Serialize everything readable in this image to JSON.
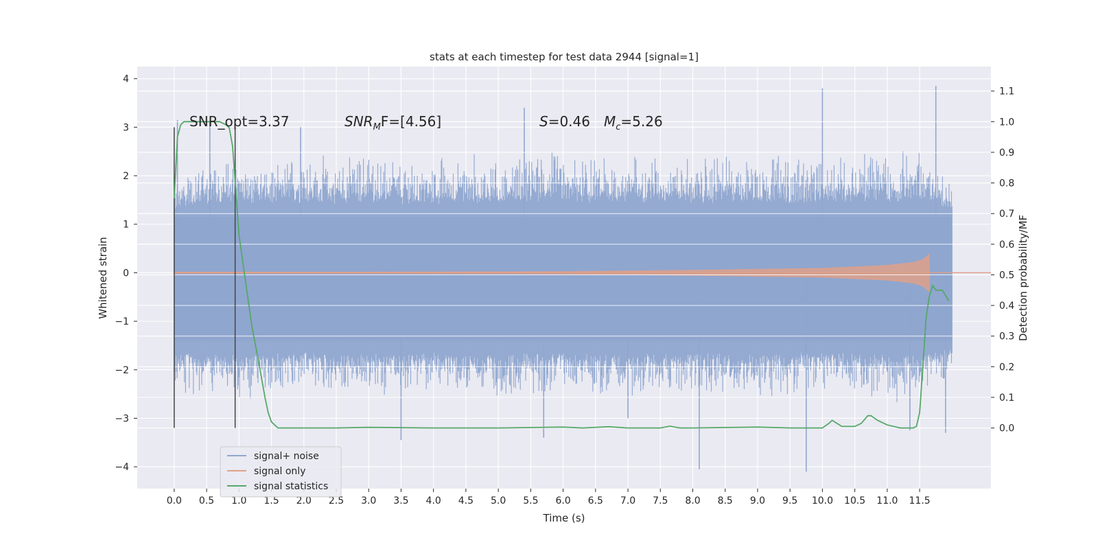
{
  "chart_data": {
    "type": "line",
    "title": "stats at each timestep for test data 2944 [signal=1]",
    "xlabel": "Time (s)",
    "ylabel_left": "Whitened strain",
    "ylabel_right": "Detection probability/MF",
    "xlim": [
      -0.57,
      12.6
    ],
    "ylim_left": [
      -4.45,
      4.25
    ],
    "ylim_right": [
      -0.198,
      1.18
    ],
    "x_ticks": [
      "0.0",
      "0.5",
      "1.0",
      "1.5",
      "2.0",
      "2.5",
      "3.0",
      "3.5",
      "4.0",
      "4.5",
      "5.0",
      "5.5",
      "6.0",
      "6.5",
      "7.0",
      "7.5",
      "8.0",
      "8.5",
      "9.0",
      "9.5",
      "10.0",
      "10.5",
      "11.0",
      "11.5"
    ],
    "y_ticks_left": [
      "4",
      "3",
      "2",
      "1",
      "0",
      "−1",
      "−2",
      "−3",
      "−4"
    ],
    "y_ticks_right": [
      "1.1",
      "1.0",
      "0.9",
      "0.8",
      "0.7",
      "0.6",
      "0.5",
      "0.4",
      "0.3",
      "0.2",
      "0.1",
      "0.0"
    ],
    "grid": true,
    "legend_position": "lower-left",
    "annotations": {
      "snr_opt": "SNR_opt=3.37",
      "snr_mf_name": "SNR",
      "snr_mf_sub": "M",
      "snr_mf_rest": "F=[4.56]",
      "s_name": "S",
      "s_value": "=0.46",
      "mc_name": "M",
      "mc_sub": "c",
      "mc_value": "=5.26"
    },
    "vlines": [
      0.0,
      0.94
    ],
    "series": [
      {
        "name": "signal+ noise",
        "color": "#8fa6cf",
        "axis": "left",
        "x_range": [
          0.0,
          12.0
        ],
        "envelope_upper": [
          1.9,
          2.3,
          2.4,
          2.3,
          2.5,
          2.4,
          2.6,
          2.3,
          2.4,
          2.5,
          2.4,
          2.6,
          2.5,
          2.4,
          2.5,
          2.6,
          2.4,
          2.5,
          2.6,
          2.4,
          2.5,
          2.6,
          2.5,
          2.7,
          1.9
        ],
        "envelope_lower": [
          -2.5,
          -2.6,
          -2.7,
          -2.6,
          -2.5,
          -2.6,
          -2.7,
          -2.6,
          -2.5,
          -2.6,
          -2.7,
          -2.6,
          -2.5,
          -2.6,
          -2.7,
          -2.6,
          -2.5,
          -2.6,
          -2.7,
          -2.6,
          -2.5,
          -2.6,
          -2.7,
          -2.6,
          -2.2
        ],
        "core_band": [
          -1.4,
          1.15
        ],
        "spikes": [
          [
            0.05,
            3.15
          ],
          [
            0.55,
            3.1
          ],
          [
            1.95,
            3.0
          ],
          [
            3.5,
            -3.45
          ],
          [
            5.4,
            3.4
          ],
          [
            5.7,
            -3.4
          ],
          [
            7.0,
            -3.0
          ],
          [
            8.1,
            -4.05
          ],
          [
            9.75,
            -4.1
          ],
          [
            10.0,
            3.8
          ],
          [
            11.35,
            -3.25
          ],
          [
            11.75,
            3.85
          ],
          [
            11.9,
            -3.3
          ]
        ]
      },
      {
        "name": "signal only",
        "color": "#dfa088",
        "axis": "left",
        "amplitude": [
          [
            0.0,
            0.02
          ],
          [
            3.0,
            0.02
          ],
          [
            6.0,
            0.03
          ],
          [
            8.0,
            0.06
          ],
          [
            10.0,
            0.1
          ],
          [
            11.0,
            0.16
          ],
          [
            11.4,
            0.22
          ],
          [
            11.55,
            0.28
          ],
          [
            11.65,
            0.4
          ],
          [
            11.66,
            0.0
          ]
        ]
      },
      {
        "name": "signal statistics",
        "color": "#55a868",
        "axis": "right",
        "x": [
          0.0,
          0.05,
          0.1,
          0.15,
          0.2,
          0.3,
          0.5,
          0.7,
          0.8,
          0.85,
          0.9,
          1.0,
          1.1,
          1.2,
          1.3,
          1.4,
          1.45,
          1.5,
          1.6,
          1.8,
          2.5,
          3.0,
          4.0,
          5.0,
          6.0,
          6.3,
          6.7,
          7.0,
          7.5,
          7.65,
          7.8,
          8.0,
          9.0,
          9.5,
          10.0,
          10.1,
          10.15,
          10.3,
          10.5,
          10.6,
          10.7,
          10.75,
          10.85,
          11.0,
          11.2,
          11.4,
          11.45,
          11.5,
          11.55,
          11.6,
          11.65,
          11.7,
          11.75,
          11.85,
          11.95
        ],
        "y": [
          0.75,
          0.95,
          0.99,
          1.0,
          1.0,
          1.0,
          1.0,
          1.0,
          0.99,
          0.98,
          0.92,
          0.63,
          0.48,
          0.33,
          0.22,
          0.1,
          0.05,
          0.02,
          0.0,
          0.0,
          0.0,
          0.002,
          0.0,
          0.0,
          0.003,
          0.0,
          0.004,
          0.0,
          0.0,
          0.006,
          0.0,
          0.0,
          0.003,
          0.0,
          0.0,
          0.015,
          0.025,
          0.005,
          0.005,
          0.015,
          0.04,
          0.04,
          0.025,
          0.01,
          0.0,
          0.0,
          0.005,
          0.05,
          0.2,
          0.36,
          0.43,
          0.465,
          0.45,
          0.45,
          0.415
        ]
      }
    ]
  }
}
